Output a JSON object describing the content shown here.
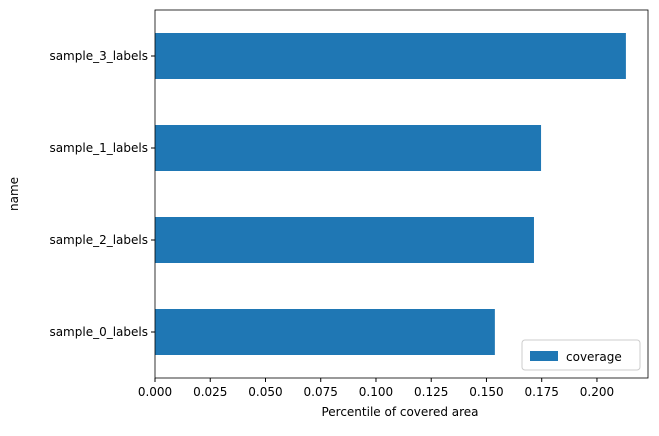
{
  "chart_data": {
    "type": "barh",
    "categories": [
      "sample_0_labels",
      "sample_2_labels",
      "sample_1_labels",
      "sample_3_labels"
    ],
    "series": [
      {
        "name": "coverage",
        "color": "#1f77b4",
        "values": [
          0.1538,
          0.1715,
          0.1747,
          0.2131
        ]
      }
    ],
    "xlabel": "Percentile of covered area",
    "ylabel": "name",
    "xlim": [
      0,
      0.2231
    ],
    "xticks": [
      {
        "value": 0,
        "label": "0.000"
      },
      {
        "value": 0.025,
        "label": "0.025"
      },
      {
        "value": 0.05,
        "label": "0.050"
      },
      {
        "value": 0.075,
        "label": "0.075"
      },
      {
        "value": 0.1,
        "label": "0.100"
      },
      {
        "value": 0.125,
        "label": "0.125"
      },
      {
        "value": 0.15,
        "label": "0.150"
      },
      {
        "value": 0.175,
        "label": "0.175"
      },
      {
        "value": 0.2,
        "label": "0.200"
      }
    ],
    "legend": "lower right"
  }
}
